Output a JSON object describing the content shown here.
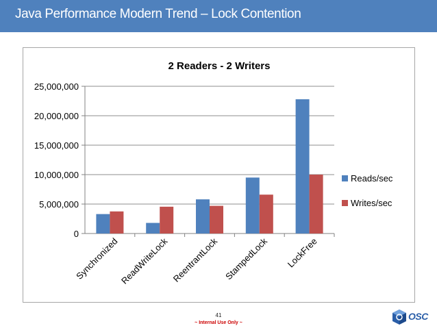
{
  "slide": {
    "title": "Java Performance Modern Trend – Lock Contention",
    "page_number": "41",
    "footer_note": "~ Internal Use Only ~",
    "logo_text": "OSC"
  },
  "colors": {
    "header_bg": "#4f81bd",
    "reads": "#4f81bd",
    "writes": "#c0504d"
  },
  "chart_data": {
    "type": "bar",
    "title": "2 Readers - 2 Writers",
    "categories": [
      "Synchronized",
      "ReadWriteLock",
      "ReentrantLock",
      "StampedLock",
      "LockFree"
    ],
    "series": [
      {
        "name": "Reads/sec",
        "values": [
          3300000,
          1800000,
          5800000,
          9500000,
          22800000
        ]
      },
      {
        "name": "Writes/sec",
        "values": [
          3750000,
          4550000,
          4700000,
          6600000,
          10000000
        ]
      }
    ],
    "y_ticks": [
      "0",
      "5,000,000",
      "10,000,000",
      "15,000,000",
      "20,000,000",
      "25,000,000"
    ],
    "ylim": [
      0,
      25000000
    ],
    "grid": true,
    "legend": "right"
  }
}
